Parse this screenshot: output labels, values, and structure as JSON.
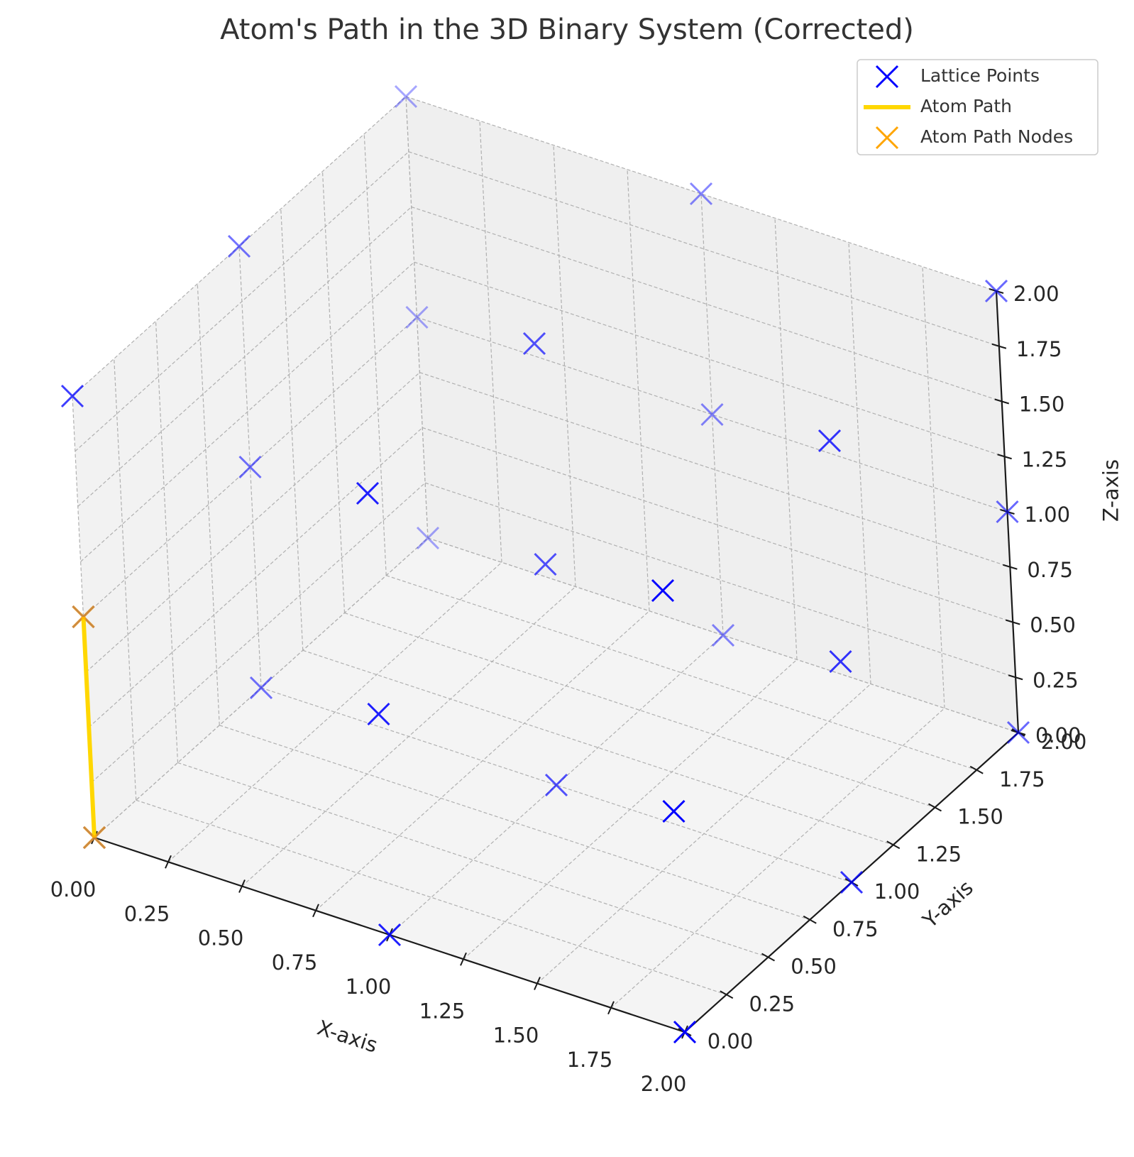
{
  "chart_data": {
    "type": "scatter",
    "projection": "3d",
    "title": "Atom's Path in the 3D Binary System (Corrected)",
    "xlabel": "X-axis",
    "ylabel": "Y-axis",
    "zlabel": "Z-axis",
    "xlim": [
      0,
      2
    ],
    "ylim": [
      0,
      2
    ],
    "zlim": [
      0,
      2
    ],
    "xticks": [
      "0.00",
      "0.25",
      "0.50",
      "0.75",
      "1.00",
      "1.25",
      "1.50",
      "1.75",
      "2.00"
    ],
    "yticks": [
      "0.00",
      "0.25",
      "0.50",
      "0.75",
      "1.00",
      "1.25",
      "1.50",
      "1.75",
      "2.00"
    ],
    "zticks": [
      "0.00",
      "0.25",
      "0.50",
      "0.75",
      "1.00",
      "1.25",
      "1.50",
      "1.75",
      "2.00"
    ],
    "grid": true,
    "legend_position": "top-right",
    "series": [
      {
        "name": "Lattice Points",
        "kind": "scatter",
        "marker": "x",
        "color": "#0000ff",
        "points": [
          [
            0,
            0,
            0
          ],
          [
            0,
            0,
            1
          ],
          [
            0,
            0,
            2
          ],
          [
            0,
            1,
            0
          ],
          [
            0,
            1,
            1
          ],
          [
            0,
            1,
            2
          ],
          [
            0,
            2,
            0
          ],
          [
            0,
            2,
            1
          ],
          [
            0,
            2,
            2
          ],
          [
            1,
            0,
            0
          ],
          [
            1,
            0,
            1
          ],
          [
            1,
            0,
            2
          ],
          [
            1,
            1,
            0
          ],
          [
            1,
            1,
            1
          ],
          [
            1,
            1,
            2
          ],
          [
            1,
            2,
            0
          ],
          [
            1,
            2,
            1
          ],
          [
            1,
            2,
            2
          ],
          [
            2,
            0,
            0
          ],
          [
            2,
            0,
            1
          ],
          [
            2,
            0,
            2
          ],
          [
            2,
            1,
            0
          ],
          [
            2,
            1,
            1
          ],
          [
            2,
            1,
            2
          ],
          [
            2,
            2,
            0
          ],
          [
            2,
            2,
            1
          ],
          [
            2,
            2,
            2
          ]
        ]
      },
      {
        "name": "Atom Path",
        "kind": "line",
        "color": "#ffd700",
        "points": [
          [
            0,
            0,
            0
          ],
          [
            0,
            0,
            1
          ]
        ]
      },
      {
        "name": "Atom Path Nodes",
        "kind": "scatter",
        "marker": "x",
        "color": "#ffa500",
        "points": [
          [
            0,
            0,
            0
          ],
          [
            0,
            0,
            1
          ]
        ]
      }
    ]
  }
}
